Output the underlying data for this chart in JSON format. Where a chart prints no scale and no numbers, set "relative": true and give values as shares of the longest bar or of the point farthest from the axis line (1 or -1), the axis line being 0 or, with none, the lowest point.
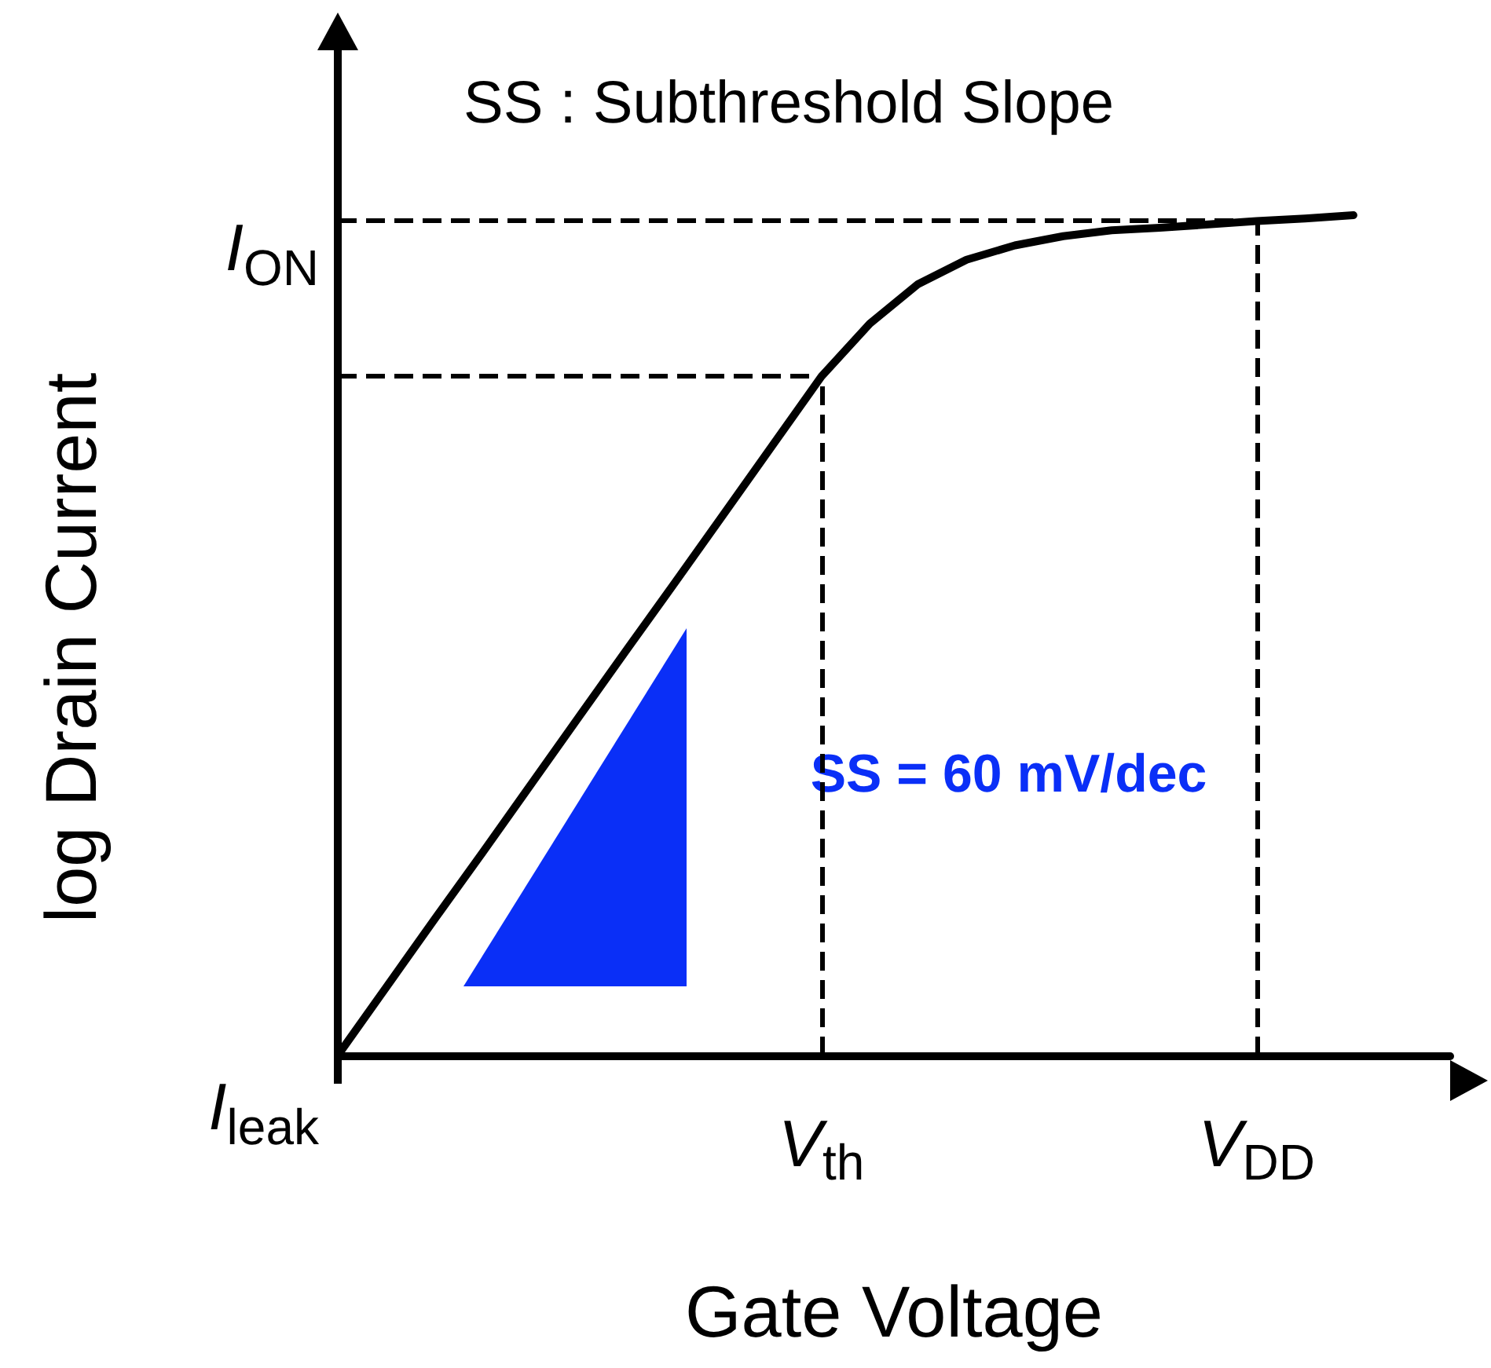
{
  "chart_data": {
    "type": "line",
    "relative": true,
    "title": "SS : Subthreshold Slope",
    "xlabel": "Gate Voltage",
    "ylabel": "log Drain Current",
    "categories": [
      null,
      null,
      null,
      null,
      null,
      null,
      null,
      null,
      null,
      null,
      "V$_{th}$",
      null,
      null,
      null,
      null,
      null,
      null,
      null,
      null,
      "V$_{DD}$",
      null,
      null,
      null,
      null
    ],
    "series": [
      {
        "color": "#000000",
        "values": [
          0,
          0.081,
          0.162,
          0.242,
          0.323,
          0.404,
          0.485,
          0.565,
          0.646,
          0.727,
          0.808,
          0.871,
          0.918,
          0.947,
          0.964,
          0.975,
          0.982,
          0.985,
          0.989,
          0.993,
          0.996,
          1,
          null,
          null
        ]
      }
    ],
    "ref_lines": [
      {
        "axis": "x",
        "value": "V$_{th}$",
        "line_style": "dashed",
        "color": "#000000"
      },
      {
        "axis": "x",
        "value": "V$_{DD}$",
        "line_style": "dashed",
        "color": "#000000"
      },
      {
        "axis": "y",
        "value": 0.808,
        "line_style": "dashed",
        "color": "#000000"
      },
      {
        "axis": "y",
        "value": 0.993,
        "line_style": "dashed",
        "color": "#000000",
        "label": "I$_{ON}$"
      }
    ],
    "annotations": [
      "I$_{leak}$",
      "SS = 60 mV/dec"
    ],
    "marker": "none",
    "line_style": "solid",
    "grid": false
  }
}
